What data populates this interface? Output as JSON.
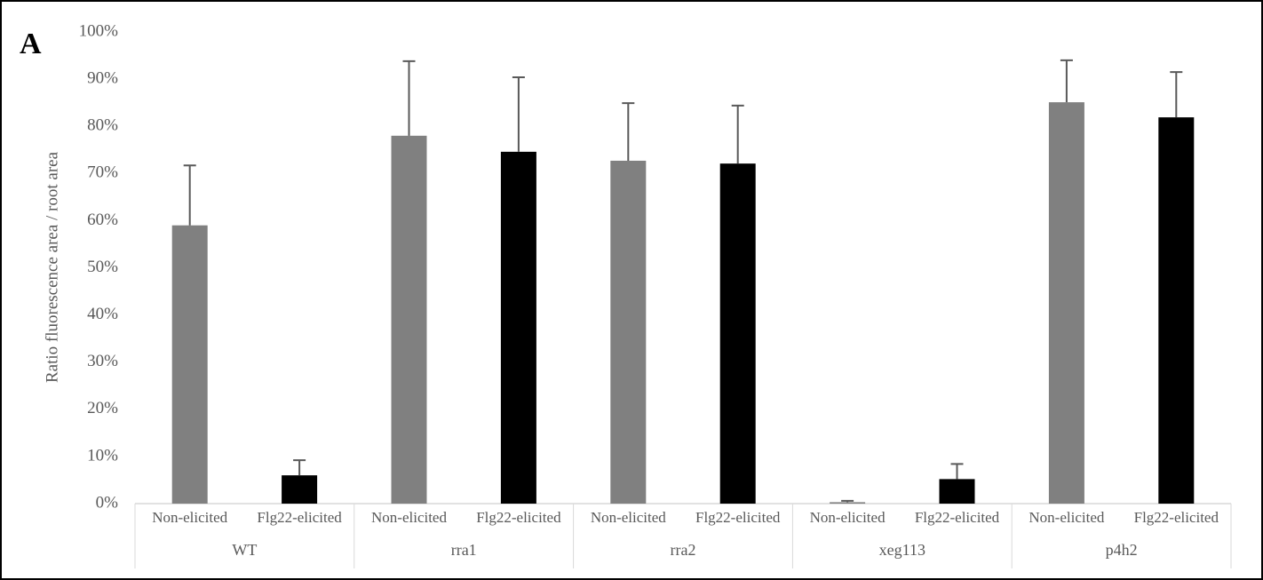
{
  "chart_data": {
    "type": "bar",
    "annotation": "A",
    "y_label": "Ratio fluorescence area / root area",
    "ylim": [
      0,
      100
    ],
    "yticks": [
      {
        "value": 0,
        "label": "0%"
      },
      {
        "value": 10,
        "label": "10%"
      },
      {
        "value": 20,
        "label": "20%"
      },
      {
        "value": 30,
        "label": "30%"
      },
      {
        "value": 40,
        "label": "40%"
      },
      {
        "value": 50,
        "label": "50%"
      },
      {
        "value": 60,
        "label": "60%"
      },
      {
        "value": 70,
        "label": "70%"
      },
      {
        "value": 80,
        "label": "80%"
      },
      {
        "value": 90,
        "label": "90%"
      },
      {
        "value": 100,
        "label": "100%"
      }
    ],
    "colors": [
      "#808080",
      "#000000"
    ],
    "error_color": "#595959",
    "grid": false,
    "groups": [
      {
        "name": "WT",
        "categories": [
          "Non-elicited",
          "Flg22-elicited"
        ],
        "values": [
          59,
          6
        ],
        "errors": [
          12.7,
          3.2
        ]
      },
      {
        "name": "rra1",
        "categories": [
          "Non-elicited",
          "Flg22-elicited"
        ],
        "values": [
          78,
          74.6
        ],
        "errors": [
          15.8,
          15.8
        ]
      },
      {
        "name": "rra2",
        "categories": [
          "Non-elicited",
          "Flg22-elicited"
        ],
        "values": [
          72.7,
          72.1
        ],
        "errors": [
          12.2,
          12.3
        ]
      },
      {
        "name": "xeg113",
        "categories": [
          "Non-elicited",
          "Flg22-elicited"
        ],
        "values": [
          0.3,
          5.2
        ],
        "errors": [
          0.3,
          3.2
        ]
      },
      {
        "name": "p4h2",
        "categories": [
          "Non-elicited",
          "Flg22-elicited"
        ],
        "values": [
          85.1,
          81.9
        ],
        "errors": [
          8.9,
          9.6
        ]
      }
    ]
  }
}
